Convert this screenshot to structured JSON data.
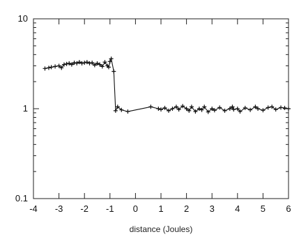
{
  "chart_data": {
    "type": "line",
    "title": "",
    "xlabel": "distance (Joules)",
    "ylabel": "",
    "xlim": [
      -4,
      6
    ],
    "ylim": [
      0.1,
      10
    ],
    "yscale": "log",
    "grid": false,
    "legend": "none",
    "x_ticks": [
      -4,
      -3,
      -2,
      -1,
      0,
      1,
      2,
      3,
      4,
      5,
      6
    ],
    "x_tick_labels": [
      "-4",
      "-3",
      "-2",
      "-1",
      "0",
      "1",
      "2",
      "3",
      "4",
      "5",
      "6"
    ],
    "y_ticks": [
      0.1,
      1,
      10
    ],
    "y_tick_labels": [
      "0.1",
      "1",
      "10"
    ],
    "line_color": "#111111",
    "marker": "plus",
    "series": [
      {
        "x": [
          -3.55,
          -3.4,
          -3.3,
          -3.15,
          -3.0,
          -2.9,
          -2.8,
          -2.7,
          -2.6,
          -2.5,
          -2.4,
          -2.3,
          -2.2,
          -2.1,
          -2.0,
          -1.9,
          -1.8,
          -1.7,
          -1.6,
          -1.5,
          -1.4,
          -1.3,
          -1.2,
          -1.1,
          -1.05,
          -1.0,
          -0.95,
          -0.85,
          -0.78,
          -0.7,
          -0.55,
          -0.3,
          0.6,
          0.9,
          1.0,
          1.15,
          1.3,
          1.45,
          1.6,
          1.7,
          1.85,
          2.0,
          2.1,
          2.2,
          2.35,
          2.5,
          2.6,
          2.7,
          2.85,
          3.0,
          3.1,
          3.3,
          3.5,
          3.7,
          3.8,
          3.85,
          4.0,
          4.1,
          4.3,
          4.5,
          4.7,
          4.8,
          5.0,
          5.2,
          5.35,
          5.5,
          5.7,
          5.85,
          6.0
        ],
        "y": [
          2.8,
          2.85,
          2.9,
          2.95,
          3.0,
          2.85,
          3.1,
          3.15,
          3.2,
          3.1,
          3.25,
          3.2,
          3.3,
          3.2,
          3.25,
          3.3,
          3.2,
          3.25,
          3.05,
          3.2,
          3.1,
          2.95,
          3.3,
          3.0,
          2.9,
          3.35,
          3.6,
          2.6,
          0.95,
          1.05,
          0.97,
          0.93,
          1.05,
          1.0,
          0.98,
          1.02,
          0.95,
          1.0,
          1.05,
          0.98,
          1.07,
          1.0,
          0.95,
          1.05,
          0.93,
          1.0,
          0.97,
          1.05,
          0.92,
          1.0,
          0.96,
          1.03,
          0.95,
          1.0,
          1.05,
          0.98,
          1.0,
          0.93,
          1.02,
          0.97,
          1.05,
          1.0,
          0.96,
          1.03,
          1.05,
          0.98,
          1.03,
          1.02,
          1.0
        ]
      }
    ]
  }
}
